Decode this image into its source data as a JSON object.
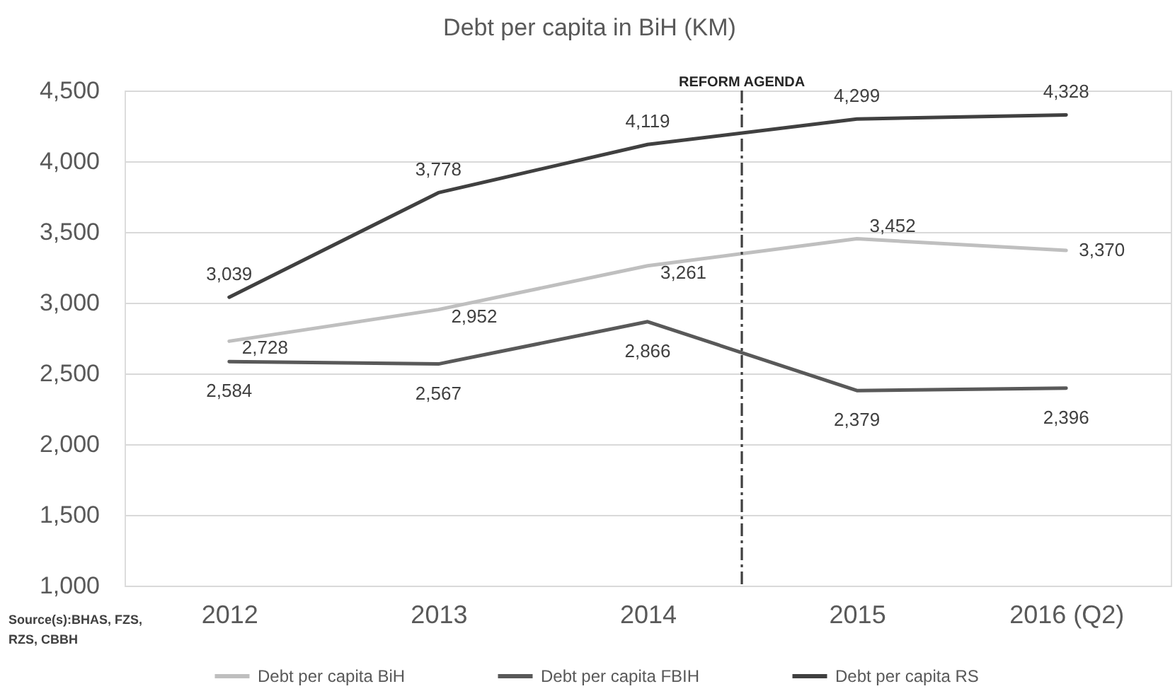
{
  "chart_data": {
    "type": "line",
    "title": "Debt per capita in BiH (KM)",
    "x": [
      2012,
      2013,
      2014,
      2015,
      2016
    ],
    "xlim": [
      2011.5,
      2016.5
    ],
    "xticks": [
      2012,
      2013,
      2014,
      2015,
      {
        "value": 2016,
        "label": "2016 (Q2)"
      }
    ],
    "ylim": [
      1000,
      4500
    ],
    "yticks": [
      {
        "value": 1000,
        "label": "1,000"
      },
      {
        "value": 1500,
        "label": "1,500"
      },
      {
        "value": 2000,
        "label": "2,000"
      },
      {
        "value": 2500,
        "label": "2,500"
      },
      {
        "value": 3000,
        "label": "3,000"
      },
      {
        "value": 3500,
        "label": "3,500"
      },
      {
        "value": 4000,
        "label": "4,000"
      },
      {
        "value": 4500,
        "label": "4,500"
      }
    ],
    "series": [
      {
        "name": "Debt per capita BiH",
        "color": "#bfbfbf",
        "values": [
          2728,
          2952,
          3261,
          3452,
          3370
        ],
        "value_labels": [
          "2,728",
          "2,952",
          "3,261",
          "3,452",
          "3,370"
        ]
      },
      {
        "name": "Debt per capita FBIH",
        "color": "#595959",
        "values": [
          2584,
          2567,
          2866,
          2379,
          2396
        ],
        "value_labels": [
          "2,584",
          "2,567",
          "2,866",
          "2,379",
          "2,396"
        ]
      },
      {
        "name": "Debt per capita RS",
        "color": "#404040",
        "values": [
          3039,
          3778,
          4119,
          4299,
          4328
        ],
        "value_labels": [
          "3,039",
          "3,778",
          "4,119",
          "4,299",
          "4,328"
        ]
      }
    ],
    "grid": "y",
    "legend": "bottom",
    "ref_lines": [
      {
        "axis": "x",
        "value": 2014.45,
        "label": "REFORM AGENDA",
        "color": "#404040",
        "line_style": "dashdot"
      }
    ],
    "annotations": [
      "Source(s):BHAS, FZS, RZS, CBBH"
    ]
  }
}
